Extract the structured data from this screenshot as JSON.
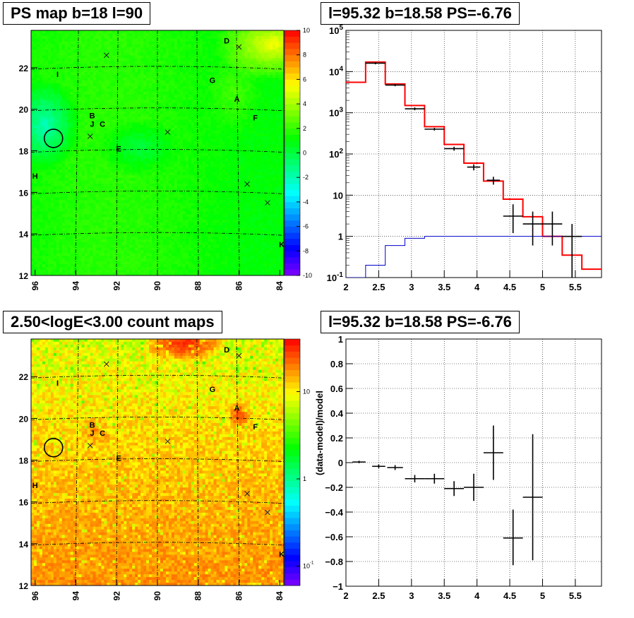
{
  "panels": {
    "ps_map": {
      "title": "PS map b=18 l=90"
    },
    "spectrum": {
      "title": "l=95.32 b=18.58 PS=-6.76"
    },
    "count_map": {
      "title": "2.50<logE<3.00 count maps"
    },
    "residual": {
      "title": "l=95.32 b=18.58 PS=-6.76"
    }
  },
  "sky_labels": {
    "markers": [
      "A",
      "B",
      "C",
      "D",
      "E",
      "F",
      "G",
      "H",
      "I",
      "J",
      "K"
    ]
  },
  "chart_data": [
    {
      "id": "ps_map",
      "type": "heatmap",
      "title": "PS map b=18 l=90",
      "x_ticks": [
        "96",
        "94",
        "92",
        "90",
        "88",
        "86",
        "84"
      ],
      "y_ticks": [
        "12",
        "14",
        "16",
        "18",
        "20",
        "22"
      ],
      "xlim": [
        96.2,
        83.8
      ],
      "ylim": [
        12,
        23.8
      ],
      "colorbar_ticks": [
        "10",
        "8",
        "6",
        "4",
        "2",
        "0",
        "-2",
        "-4",
        "-6",
        "-8",
        "-10"
      ],
      "zlim": [
        -10,
        10
      ],
      "colors": {
        "low": "#4400ff",
        "mid": "#00ff44",
        "high": "#ff0000",
        "background": "#3ed83e"
      },
      "labels": [
        {
          "text": "A",
          "l": 86.1,
          "b": 20.5
        },
        {
          "text": "B",
          "l": 93.2,
          "b": 19.7
        },
        {
          "text": "C",
          "l": 92.7,
          "b": 19.3
        },
        {
          "text": "D",
          "l": 86.6,
          "b": 23.3
        },
        {
          "text": "E",
          "l": 91.9,
          "b": 18.1
        },
        {
          "text": "F",
          "l": 85.2,
          "b": 19.6
        },
        {
          "text": "G",
          "l": 87.3,
          "b": 21.4
        },
        {
          "text": "H",
          "l": 96.0,
          "b": 16.8
        },
        {
          "text": "I",
          "l": 94.9,
          "b": 21.7
        },
        {
          "text": "J",
          "l": 93.2,
          "b": 19.3
        },
        {
          "text": "K",
          "l": 83.9,
          "b": 13.5
        }
      ],
      "crosses": [
        {
          "l": 92.5,
          "b": 22.6
        },
        {
          "l": 86.0,
          "b": 23.0
        },
        {
          "l": 93.3,
          "b": 18.7
        },
        {
          "l": 89.5,
          "b": 18.9
        },
        {
          "l": 85.6,
          "b": 16.4
        },
        {
          "l": 84.6,
          "b": 15.5
        }
      ],
      "circle": {
        "l": 95.1,
        "b": 18.6
      }
    },
    {
      "id": "spectrum",
      "type": "line",
      "title": "l=95.32 b=18.58 PS=-6.76",
      "x_ticks": [
        "2",
        "2.5",
        "3",
        "3.5",
        "4",
        "4.5",
        "5",
        "5.5"
      ],
      "y_ticks": [
        "10^-1",
        "1",
        "10",
        "10^2",
        "10^3",
        "10^4",
        "10^5"
      ],
      "xlim": [
        2,
        5.9
      ],
      "ylim": [
        0.1,
        100000
      ],
      "log_y": true,
      "grid": true,
      "bin_edges": [
        2.0,
        2.3,
        2.6,
        2.9,
        3.2,
        3.5,
        3.8,
        4.1,
        4.4,
        4.7,
        5.0,
        5.3,
        5.6,
        5.9
      ],
      "series": [
        {
          "values": [
            5500,
            17000,
            5000,
            1500,
            460,
            170,
            60,
            22,
            8,
            3,
            1,
            0.35,
            0.16
          ],
          "color": "#ff0000"
        },
        {
          "values": [
            0.1,
            0.2,
            0.6,
            0.9,
            1.0,
            1.0,
            1.0,
            1.0,
            1.0,
            1.0,
            1.0,
            1.0,
            1.0
          ],
          "color": "#0000cc"
        }
      ],
      "points": [
        {
          "x": 2.45,
          "xerr": 0.15,
          "y": 16000,
          "ylo": 15000,
          "yhi": 17000
        },
        {
          "x": 2.75,
          "xerr": 0.15,
          "y": 4700,
          "ylo": 4400,
          "yhi": 5000
        },
        {
          "x": 3.05,
          "xerr": 0.15,
          "y": 1250,
          "ylo": 1150,
          "yhi": 1350
        },
        {
          "x": 3.35,
          "xerr": 0.15,
          "y": 400,
          "ylo": 370,
          "yhi": 430
        },
        {
          "x": 3.65,
          "xerr": 0.15,
          "y": 135,
          "ylo": 120,
          "yhi": 150
        },
        {
          "x": 3.95,
          "xerr": 0.1,
          "y": 48,
          "ylo": 40,
          "yhi": 56
        },
        {
          "x": 4.25,
          "xerr": 0.1,
          "y": 23,
          "ylo": 18,
          "yhi": 28
        },
        {
          "x": 4.55,
          "xerr": 0.15,
          "y": 3.1,
          "ylo": 1.2,
          "yhi": 6.0
        },
        {
          "x": 4.85,
          "xerr": 0.15,
          "y": 2.0,
          "ylo": 0.6,
          "yhi": 4.0
        },
        {
          "x": 5.15,
          "xerr": 0.15,
          "y": 2.0,
          "ylo": 0.6,
          "yhi": 4.0
        },
        {
          "x": 5.45,
          "xerr": 0.15,
          "y": 1.0,
          "ylo": 0.1,
          "yhi": 2.0
        }
      ]
    },
    {
      "id": "count_map",
      "type": "heatmap",
      "title": "2.50<logE<3.00 count maps",
      "x_ticks": [
        "96",
        "94",
        "92",
        "90",
        "88",
        "86",
        "84"
      ],
      "y_ticks": [
        "12",
        "14",
        "16",
        "18",
        "20",
        "22"
      ],
      "xlim": [
        96.2,
        83.8
      ],
      "ylim": [
        12,
        23.8
      ],
      "colorbar_ticks": [
        "10",
        "1",
        "10^-1"
      ],
      "zlim": [
        0.06,
        40
      ],
      "log_z": true,
      "colors": {
        "low": "#4400ff",
        "mid": "#00ff44",
        "high": "#ff0000",
        "background": "#e6e630"
      },
      "labels": [
        {
          "text": "A",
          "l": 86.1,
          "b": 20.5
        },
        {
          "text": "B",
          "l": 93.2,
          "b": 19.7
        },
        {
          "text": "C",
          "l": 92.7,
          "b": 19.3
        },
        {
          "text": "D",
          "l": 86.6,
          "b": 23.3
        },
        {
          "text": "E",
          "l": 91.9,
          "b": 18.1
        },
        {
          "text": "F",
          "l": 85.2,
          "b": 19.6
        },
        {
          "text": "G",
          "l": 87.3,
          "b": 21.4
        },
        {
          "text": "H",
          "l": 96.0,
          "b": 16.8
        },
        {
          "text": "I",
          "l": 94.9,
          "b": 21.7
        },
        {
          "text": "J",
          "l": 93.2,
          "b": 19.3
        },
        {
          "text": "K",
          "l": 83.9,
          "b": 13.5
        }
      ],
      "crosses": [
        {
          "l": 92.5,
          "b": 22.6
        },
        {
          "l": 86.0,
          "b": 23.0
        },
        {
          "l": 93.3,
          "b": 18.7
        },
        {
          "l": 89.5,
          "b": 18.9
        },
        {
          "l": 85.6,
          "b": 16.4
        },
        {
          "l": 84.6,
          "b": 15.5
        }
      ],
      "circle": {
        "l": 95.1,
        "b": 18.6
      }
    },
    {
      "id": "residual",
      "type": "scatter",
      "title": "l=95.32 b=18.58 PS=-6.76",
      "ylabel": "(data-model)/model",
      "x_ticks": [
        "2",
        "2.5",
        "3",
        "3.5",
        "4",
        "4.5",
        "5",
        "5.5"
      ],
      "y_ticks": [
        "-1",
        "-0.8",
        "-0.6",
        "-0.4",
        "-0.2",
        "0",
        "0.2",
        "0.4",
        "0.6",
        "0.8",
        "1"
      ],
      "xlim": [
        2,
        5.9
      ],
      "ylim": [
        -1,
        1
      ],
      "grid": true,
      "points": [
        {
          "x": 2.2,
          "xerr": 0.1,
          "y": 0.005,
          "ylo": -0.005,
          "yhi": 0.015
        },
        {
          "x": 2.5,
          "xerr": 0.1,
          "y": -0.03,
          "ylo": -0.045,
          "yhi": -0.015
        },
        {
          "x": 2.75,
          "xerr": 0.12,
          "y": -0.04,
          "ylo": -0.06,
          "yhi": -0.02
        },
        {
          "x": 3.05,
          "xerr": 0.15,
          "y": -0.13,
          "ylo": -0.16,
          "yhi": -0.1
        },
        {
          "x": 3.35,
          "xerr": 0.15,
          "y": -0.13,
          "ylo": -0.17,
          "yhi": -0.09
        },
        {
          "x": 3.65,
          "xerr": 0.15,
          "y": -0.21,
          "ylo": -0.27,
          "yhi": -0.15
        },
        {
          "x": 3.95,
          "xerr": 0.15,
          "y": -0.2,
          "ylo": -0.31,
          "yhi": -0.09
        },
        {
          "x": 4.25,
          "xerr": 0.15,
          "y": 0.08,
          "ylo": -0.14,
          "yhi": 0.3
        },
        {
          "x": 4.55,
          "xerr": 0.15,
          "y": -0.61,
          "ylo": -0.83,
          "yhi": -0.38
        },
        {
          "x": 4.85,
          "xerr": 0.15,
          "y": -0.28,
          "ylo": -0.79,
          "yhi": 0.23
        }
      ]
    }
  ]
}
